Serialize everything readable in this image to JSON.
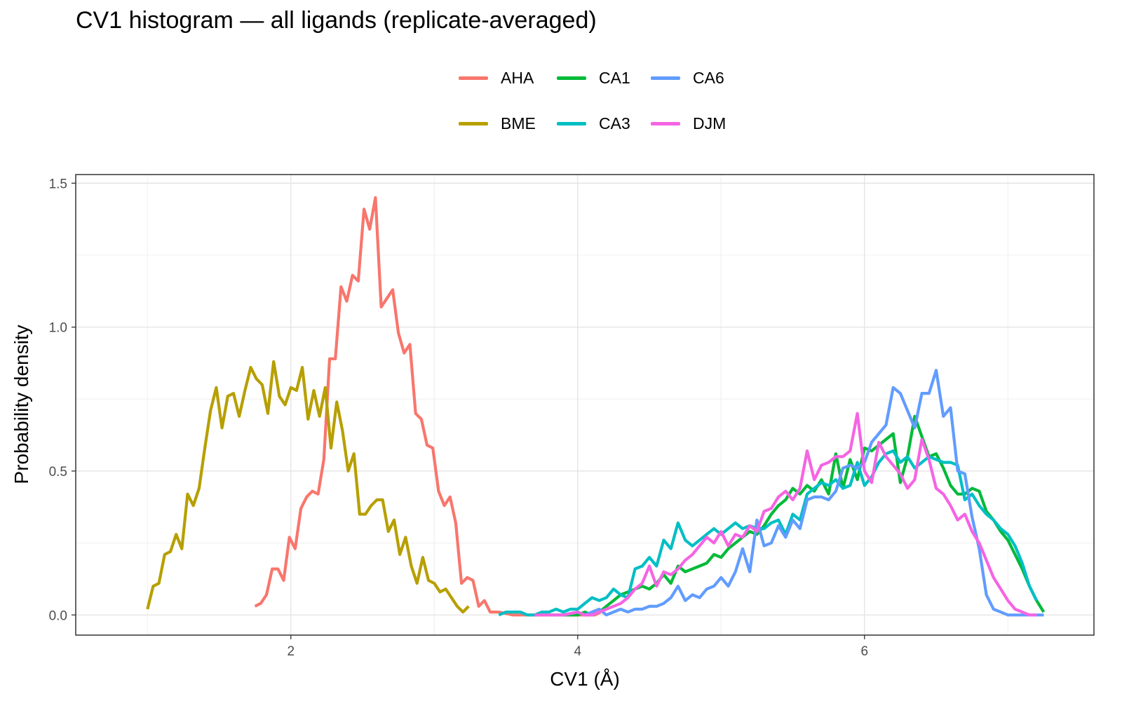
{
  "chart_data": {
    "type": "line",
    "title": "CV1 histogram — all ligands (replicate-averaged)",
    "xlabel": "CV1 (Å)",
    "ylabel": "Probability density",
    "xlim": [
      0.5,
      7.6
    ],
    "ylim": [
      -0.07,
      1.53
    ],
    "x_ticks": [
      2,
      4,
      6
    ],
    "x_tick_labels": [
      "2",
      "4",
      "6"
    ],
    "y_ticks": [
      0,
      0.5,
      1,
      1.5
    ],
    "y_tick_labels": [
      "0.0",
      "0.5",
      "1.0",
      "1.5"
    ],
    "grid": true,
    "legend_position": "top",
    "series": [
      {
        "name": "AHA",
        "color": "#F8766D",
        "x": [
          1.75,
          1.79,
          1.83,
          1.87,
          1.91,
          1.95,
          1.99,
          2.03,
          2.07,
          2.11,
          2.15,
          2.19,
          2.23,
          2.27,
          2.31,
          2.35,
          2.39,
          2.43,
          2.47,
          2.51,
          2.55,
          2.59,
          2.63,
          2.67,
          2.71,
          2.75,
          2.79,
          2.83,
          2.87,
          2.91,
          2.95,
          2.99,
          3.03,
          3.07,
          3.11,
          3.15,
          3.19,
          3.23,
          3.27,
          3.31,
          3.35,
          3.39,
          3.45,
          3.55,
          3.65,
          3.75,
          3.85,
          3.95,
          4.05,
          4.12,
          4.16
        ],
        "y": [
          0.03,
          0.04,
          0.07,
          0.16,
          0.16,
          0.12,
          0.27,
          0.23,
          0.37,
          0.41,
          0.43,
          0.42,
          0.54,
          0.89,
          0.89,
          1.14,
          1.09,
          1.18,
          1.16,
          1.41,
          1.34,
          1.45,
          1.07,
          1.1,
          1.13,
          0.98,
          0.91,
          0.94,
          0.7,
          0.68,
          0.59,
          0.58,
          0.43,
          0.38,
          0.41,
          0.32,
          0.11,
          0.13,
          0.12,
          0.03,
          0.05,
          0.01,
          0.01,
          0.0,
          0.0,
          0.0,
          0.0,
          0.0,
          0.0,
          0.0,
          0.01
        ]
      },
      {
        "name": "BME",
        "color": "#B79F00",
        "x": [
          1.0,
          1.04,
          1.08,
          1.12,
          1.16,
          1.2,
          1.24,
          1.28,
          1.32,
          1.36,
          1.4,
          1.44,
          1.48,
          1.52,
          1.56,
          1.6,
          1.64,
          1.68,
          1.72,
          1.76,
          1.8,
          1.84,
          1.88,
          1.92,
          1.96,
          2.0,
          2.04,
          2.08,
          2.12,
          2.16,
          2.2,
          2.24,
          2.28,
          2.32,
          2.36,
          2.4,
          2.44,
          2.48,
          2.52,
          2.56,
          2.6,
          2.64,
          2.68,
          2.72,
          2.76,
          2.8,
          2.84,
          2.88,
          2.92,
          2.96,
          3.0,
          3.04,
          3.08,
          3.12,
          3.16,
          3.2,
          3.24
        ],
        "y": [
          0.02,
          0.1,
          0.11,
          0.21,
          0.22,
          0.28,
          0.23,
          0.42,
          0.38,
          0.44,
          0.58,
          0.71,
          0.79,
          0.65,
          0.76,
          0.77,
          0.69,
          0.78,
          0.86,
          0.82,
          0.8,
          0.7,
          0.88,
          0.76,
          0.73,
          0.79,
          0.78,
          0.86,
          0.68,
          0.78,
          0.69,
          0.79,
          0.58,
          0.74,
          0.64,
          0.5,
          0.56,
          0.35,
          0.35,
          0.38,
          0.4,
          0.4,
          0.29,
          0.33,
          0.21,
          0.27,
          0.17,
          0.11,
          0.2,
          0.12,
          0.11,
          0.08,
          0.09,
          0.06,
          0.03,
          0.01,
          0.03
        ]
      },
      {
        "name": "CA1",
        "color": "#00BA38",
        "x": [
          3.8,
          3.9,
          4.0,
          4.05,
          4.1,
          4.15,
          4.2,
          4.25,
          4.3,
          4.35,
          4.4,
          4.45,
          4.5,
          4.55,
          4.6,
          4.65,
          4.7,
          4.75,
          4.8,
          4.85,
          4.9,
          4.95,
          5.0,
          5.05,
          5.1,
          5.15,
          5.2,
          5.25,
          5.3,
          5.35,
          5.4,
          5.45,
          5.5,
          5.55,
          5.6,
          5.65,
          5.7,
          5.75,
          5.8,
          5.85,
          5.9,
          5.95,
          6.0,
          6.05,
          6.1,
          6.15,
          6.2,
          6.25,
          6.3,
          6.35,
          6.4,
          6.45,
          6.5,
          6.55,
          6.6,
          6.65,
          6.7,
          6.75,
          6.8,
          6.85,
          6.9,
          6.95,
          7.0,
          7.05,
          7.1,
          7.15,
          7.2,
          7.25
        ],
        "y": [
          0.0,
          0.0,
          0.0,
          0.01,
          0.0,
          0.01,
          0.03,
          0.05,
          0.07,
          0.08,
          0.09,
          0.1,
          0.09,
          0.11,
          0.14,
          0.11,
          0.17,
          0.15,
          0.16,
          0.17,
          0.18,
          0.21,
          0.2,
          0.23,
          0.25,
          0.27,
          0.29,
          0.28,
          0.31,
          0.35,
          0.38,
          0.4,
          0.44,
          0.42,
          0.45,
          0.43,
          0.47,
          0.42,
          0.56,
          0.44,
          0.54,
          0.47,
          0.58,
          0.57,
          0.59,
          0.61,
          0.63,
          0.46,
          0.55,
          0.69,
          0.62,
          0.55,
          0.56,
          0.51,
          0.45,
          0.42,
          0.42,
          0.44,
          0.43,
          0.36,
          0.33,
          0.29,
          0.26,
          0.21,
          0.16,
          0.1,
          0.05,
          0.01
        ]
      },
      {
        "name": "CA3",
        "color": "#00BFC4",
        "x": [
          3.45,
          3.5,
          3.55,
          3.6,
          3.65,
          3.7,
          3.75,
          3.8,
          3.85,
          3.9,
          3.95,
          4.0,
          4.05,
          4.1,
          4.15,
          4.2,
          4.25,
          4.3,
          4.35,
          4.4,
          4.45,
          4.5,
          4.55,
          4.6,
          4.65,
          4.7,
          4.75,
          4.8,
          4.85,
          4.9,
          4.95,
          5.0,
          5.05,
          5.1,
          5.15,
          5.2,
          5.25,
          5.3,
          5.35,
          5.4,
          5.45,
          5.5,
          5.55,
          5.6,
          5.65,
          5.7,
          5.75,
          5.8,
          5.85,
          5.9,
          5.95,
          6.0,
          6.05,
          6.1,
          6.15,
          6.2,
          6.25,
          6.3,
          6.35,
          6.4,
          6.45,
          6.5,
          6.55,
          6.6,
          6.65,
          6.7,
          6.75,
          6.8,
          6.85,
          6.9,
          6.95,
          7.0,
          7.05,
          7.1,
          7.15,
          7.2
        ],
        "y": [
          0.0,
          0.01,
          0.01,
          0.01,
          0.0,
          0.0,
          0.01,
          0.01,
          0.02,
          0.01,
          0.02,
          0.02,
          0.04,
          0.06,
          0.05,
          0.06,
          0.09,
          0.07,
          0.06,
          0.16,
          0.17,
          0.2,
          0.17,
          0.26,
          0.23,
          0.32,
          0.26,
          0.24,
          0.26,
          0.28,
          0.3,
          0.28,
          0.3,
          0.32,
          0.3,
          0.31,
          0.3,
          0.3,
          0.32,
          0.33,
          0.28,
          0.35,
          0.33,
          0.42,
          0.44,
          0.46,
          0.45,
          0.47,
          0.44,
          0.45,
          0.53,
          0.45,
          0.48,
          0.53,
          0.56,
          0.57,
          0.53,
          0.55,
          0.51,
          0.53,
          0.55,
          0.54,
          0.53,
          0.53,
          0.52,
          0.4,
          0.42,
          0.38,
          0.35,
          0.33,
          0.3,
          0.28,
          0.24,
          0.18,
          0.1,
          0.05
        ]
      },
      {
        "name": "CA6",
        "color": "#619CFF",
        "x": [
          3.8,
          3.9,
          4.0,
          4.05,
          4.1,
          4.15,
          4.2,
          4.25,
          4.3,
          4.35,
          4.4,
          4.45,
          4.5,
          4.55,
          4.6,
          4.65,
          4.7,
          4.75,
          4.8,
          4.85,
          4.9,
          4.95,
          5.0,
          5.05,
          5.1,
          5.15,
          5.2,
          5.25,
          5.3,
          5.35,
          5.4,
          5.45,
          5.5,
          5.55,
          5.6,
          5.65,
          5.7,
          5.75,
          5.8,
          5.85,
          5.9,
          5.95,
          6.0,
          6.05,
          6.1,
          6.15,
          6.2,
          6.25,
          6.3,
          6.35,
          6.4,
          6.45,
          6.5,
          6.55,
          6.6,
          6.65,
          6.7,
          6.75,
          6.8,
          6.85,
          6.9,
          6.95,
          7.0,
          7.05,
          7.1,
          7.15,
          7.2,
          7.25
        ],
        "y": [
          0.0,
          0.0,
          0.01,
          0.0,
          0.01,
          0.02,
          0.0,
          0.01,
          0.02,
          0.01,
          0.02,
          0.02,
          0.03,
          0.03,
          0.04,
          0.06,
          0.1,
          0.05,
          0.07,
          0.06,
          0.09,
          0.1,
          0.13,
          0.1,
          0.15,
          0.23,
          0.15,
          0.33,
          0.24,
          0.25,
          0.31,
          0.27,
          0.33,
          0.3,
          0.4,
          0.41,
          0.41,
          0.4,
          0.43,
          0.51,
          0.52,
          0.51,
          0.53,
          0.6,
          0.63,
          0.66,
          0.79,
          0.77,
          0.71,
          0.65,
          0.77,
          0.77,
          0.85,
          0.69,
          0.72,
          0.5,
          0.49,
          0.34,
          0.23,
          0.07,
          0.02,
          0.01,
          0.0,
          0.0,
          0.0,
          0.0,
          0.0,
          0.0
        ]
      },
      {
        "name": "DJM",
        "color": "#F564E3",
        "x": [
          3.7,
          3.8,
          3.9,
          4.0,
          4.05,
          4.1,
          4.15,
          4.2,
          4.25,
          4.3,
          4.35,
          4.4,
          4.45,
          4.5,
          4.55,
          4.6,
          4.65,
          4.7,
          4.75,
          4.8,
          4.85,
          4.9,
          4.95,
          5.0,
          5.05,
          5.1,
          5.15,
          5.2,
          5.25,
          5.3,
          5.35,
          5.4,
          5.45,
          5.5,
          5.55,
          5.6,
          5.65,
          5.7,
          5.75,
          5.8,
          5.85,
          5.9,
          5.95,
          6.0,
          6.05,
          6.1,
          6.15,
          6.2,
          6.25,
          6.3,
          6.35,
          6.4,
          6.45,
          6.5,
          6.55,
          6.6,
          6.65,
          6.7,
          6.75,
          6.8,
          6.85,
          6.9,
          6.95,
          7.0,
          7.05,
          7.1,
          7.15,
          7.2
        ],
        "y": [
          0.0,
          0.0,
          0.0,
          0.01,
          0.0,
          0.0,
          0.01,
          0.02,
          0.03,
          0.04,
          0.06,
          0.09,
          0.11,
          0.17,
          0.1,
          0.15,
          0.14,
          0.16,
          0.19,
          0.21,
          0.24,
          0.27,
          0.25,
          0.29,
          0.24,
          0.28,
          0.27,
          0.31,
          0.29,
          0.36,
          0.37,
          0.41,
          0.43,
          0.4,
          0.44,
          0.57,
          0.47,
          0.52,
          0.53,
          0.55,
          0.55,
          0.57,
          0.7,
          0.5,
          0.46,
          0.6,
          0.55,
          0.52,
          0.49,
          0.44,
          0.47,
          0.61,
          0.54,
          0.44,
          0.42,
          0.38,
          0.33,
          0.35,
          0.29,
          0.25,
          0.19,
          0.13,
          0.09,
          0.05,
          0.02,
          0.01,
          0.0,
          0.0
        ]
      }
    ]
  }
}
